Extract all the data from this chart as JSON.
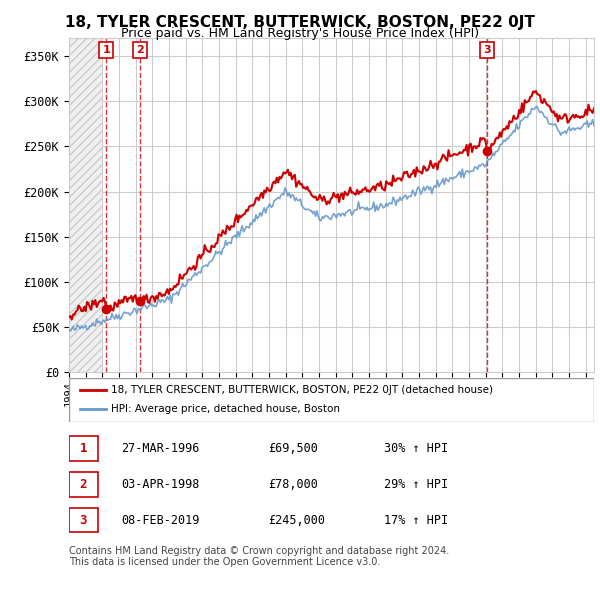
{
  "title": "18, TYLER CRESCENT, BUTTERWICK, BOSTON, PE22 0JT",
  "subtitle": "Price paid vs. HM Land Registry's House Price Index (HPI)",
  "ylabel_ticks": [
    "£0",
    "£50K",
    "£100K",
    "£150K",
    "£200K",
    "£250K",
    "£300K",
    "£350K"
  ],
  "ytick_values": [
    0,
    50000,
    100000,
    150000,
    200000,
    250000,
    300000,
    350000
  ],
  "ylim": [
    0,
    370000
  ],
  "xlim_start": 1994.0,
  "xlim_end": 2025.5,
  "hpi_color": "#6699cc",
  "price_color": "#cc0000",
  "sale_marker_color": "#cc0000",
  "legend_label_price": "18, TYLER CRESCENT, BUTTERWICK, BOSTON, PE22 0JT (detached house)",
  "legend_label_hpi": "HPI: Average price, detached house, Boston",
  "sale_dates": [
    1996.23,
    1998.26,
    2019.1
  ],
  "sale_prices": [
    69500,
    78000,
    245000
  ],
  "sale_labels": [
    "1",
    "2",
    "3"
  ],
  "sale_info": [
    {
      "label": "1",
      "date": "27-MAR-1996",
      "price": "£69,500",
      "hpi": "30% ↑ HPI"
    },
    {
      "label": "2",
      "date": "03-APR-1998",
      "price": "£78,000",
      "hpi": "29% ↑ HPI"
    },
    {
      "label": "3",
      "date": "08-FEB-2019",
      "price": "£245,000",
      "hpi": "17% ↑ HPI"
    }
  ],
  "footnote": "Contains HM Land Registry data © Crown copyright and database right 2024.\nThis data is licensed under the Open Government Licence v3.0.",
  "background_hatch_color": "#e8e8e8",
  "grid_color": "#cccccc"
}
